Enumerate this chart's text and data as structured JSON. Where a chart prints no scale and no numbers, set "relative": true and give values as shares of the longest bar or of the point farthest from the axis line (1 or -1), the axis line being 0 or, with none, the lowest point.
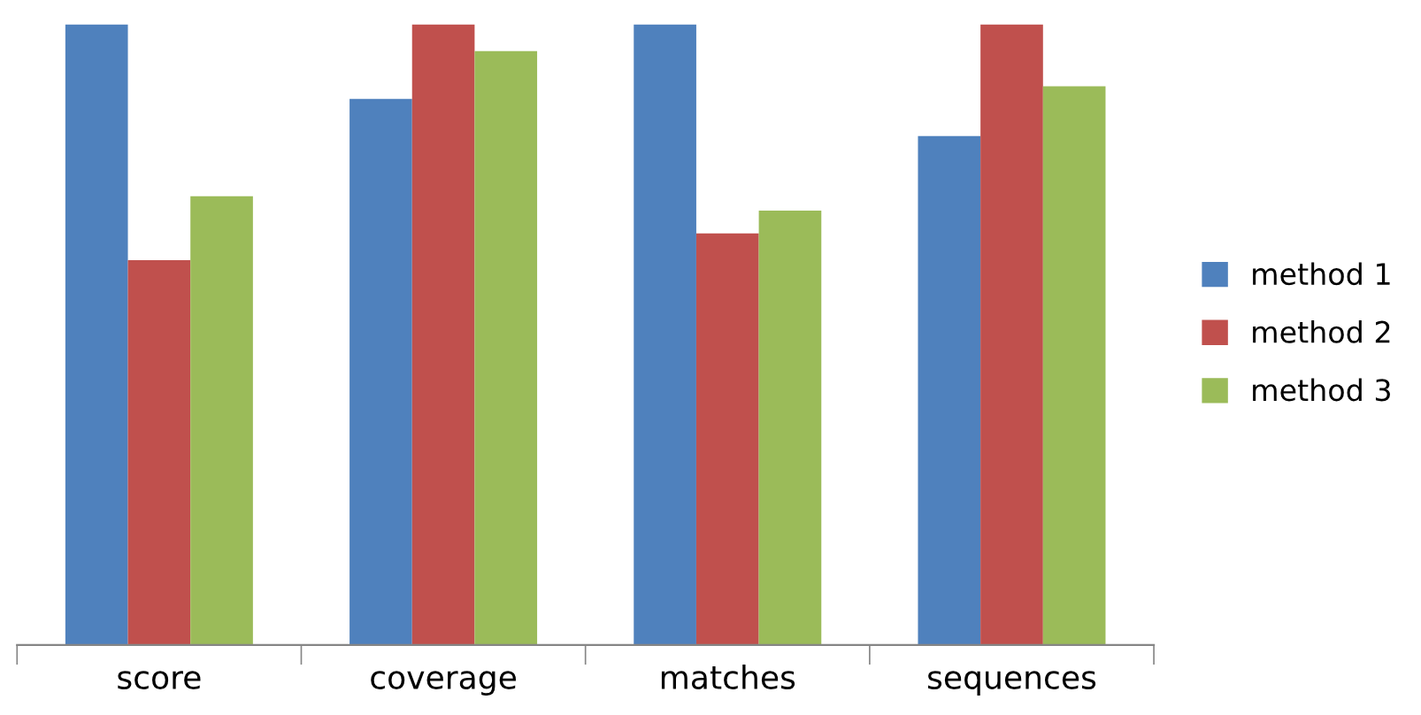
{
  "chart_data": {
    "type": "bar",
    "relative": true,
    "categories": [
      "score",
      "coverage",
      "matches",
      "sequences"
    ],
    "series": [
      {
        "name": "method 1",
        "color": "#4f81bd",
        "values": [
          1.0,
          0.88,
          1.0,
          0.82
        ]
      },
      {
        "name": "method 2",
        "color": "#c0504d",
        "values": [
          0.62,
          1.0,
          0.663,
          1.0
        ]
      },
      {
        "name": "method 3",
        "color": "#9bbb59",
        "values": [
          0.723,
          0.957,
          0.7,
          0.9
        ]
      }
    ],
    "legend": "right",
    "grid": false
  }
}
